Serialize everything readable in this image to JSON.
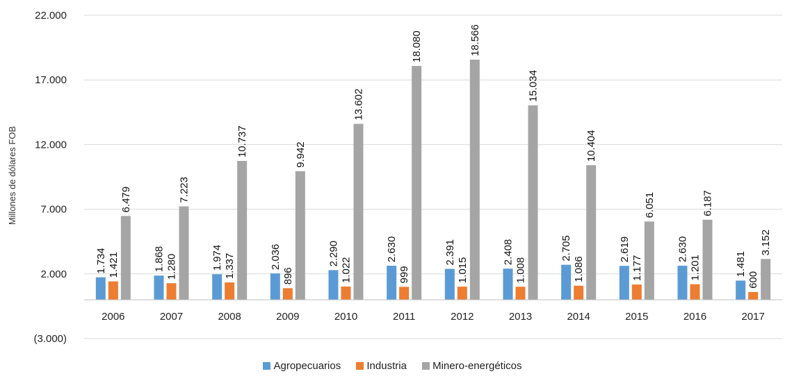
{
  "chart_data": {
    "type": "bar",
    "title": "",
    "ylabel": "Millones de dólares FOB",
    "xlabel": "",
    "ylim": [
      -3000,
      22000
    ],
    "yticks": [
      -3000,
      2000,
      7000,
      12000,
      17000,
      22000
    ],
    "ytick_labels": [
      "(3.000)",
      "2.000",
      "7.000",
      "12.000",
      "17.000",
      "22.000"
    ],
    "categories": [
      "2006",
      "2007",
      "2008",
      "2009",
      "2010",
      "2011",
      "2012",
      "2013",
      "2014",
      "2015",
      "2016",
      "2017"
    ],
    "series": [
      {
        "name": "Agropecuarios",
        "color": "#5b9bd5",
        "values": [
          1734,
          1868,
          1974,
          2036,
          2290,
          2630,
          2391,
          2408,
          2705,
          2619,
          2630,
          1481
        ],
        "labels": [
          "1.734",
          "1.868",
          "1.974",
          "2.036",
          "2.290",
          "2.630",
          "2.391",
          "2.408",
          "2.705",
          "2.619",
          "2.630",
          "1.481"
        ]
      },
      {
        "name": "Industria",
        "color": "#ed7d31",
        "values": [
          1421,
          1280,
          1337,
          896,
          1022,
          999,
          1015,
          1008,
          1086,
          1177,
          1201,
          600
        ],
        "labels": [
          "1.421",
          "1.280",
          "1.337",
          "896",
          "1.022",
          "999",
          "1.015",
          "1.008",
          "1.086",
          "1.177",
          "1.201",
          "600"
        ]
      },
      {
        "name": "Minero-energéticos",
        "color": "#a5a5a5",
        "values": [
          6479,
          7223,
          10737,
          9942,
          13602,
          18080,
          18566,
          15034,
          10404,
          6051,
          6187,
          3152
        ],
        "labels": [
          "6.479",
          "7.223",
          "10.737",
          "9.942",
          "13.602",
          "18.080",
          "18.566",
          "15.034",
          "10.404",
          "6.051",
          "6.187",
          "3.152"
        ]
      }
    ],
    "grid": true,
    "legend_position": "bottom"
  }
}
